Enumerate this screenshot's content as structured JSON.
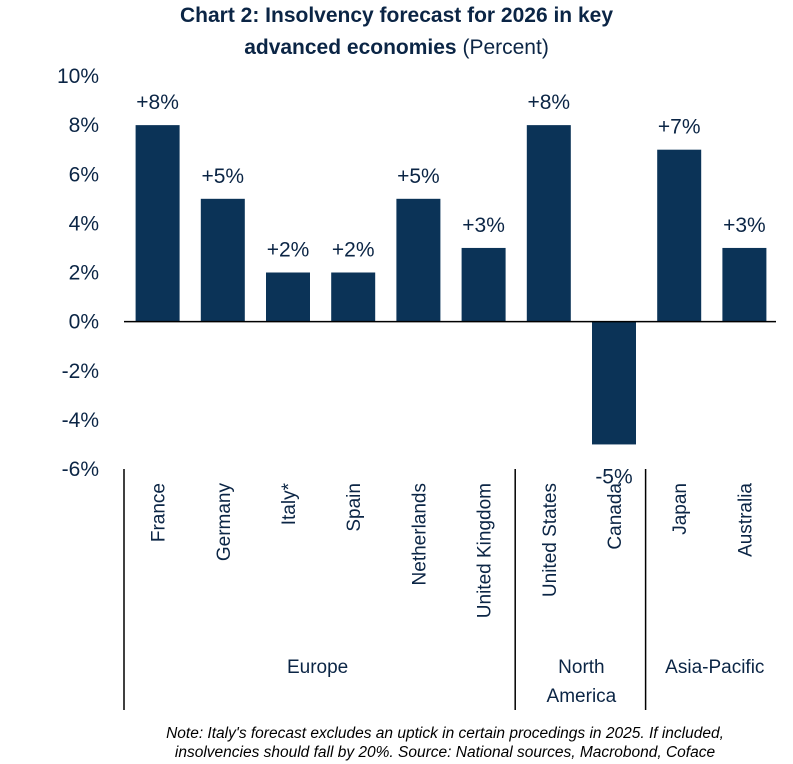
{
  "title": {
    "line1": "Chart 2: Insolvency forecast  for 2026 in key",
    "line2": "advanced economies",
    "line2_suffix": "(Percent)"
  },
  "chart_data": {
    "type": "bar",
    "categories": [
      "France",
      "Germany",
      "Italy*",
      "Spain",
      "Netherlands",
      "United Kingdom",
      "United States",
      "Canada",
      "Japan",
      "Australia"
    ],
    "values": [
      8,
      5,
      2,
      2,
      5,
      3,
      8,
      -5,
      7,
      3
    ],
    "data_labels": [
      "+8%",
      "+5%",
      "+2%",
      "+2%",
      "+5%",
      "+3%",
      "+8%",
      "-5%",
      "+7%",
      "+3%"
    ],
    "yticks": [
      10,
      8,
      6,
      4,
      2,
      0,
      -2,
      -4,
      -6
    ],
    "ytick_labels": [
      "10%",
      "8%",
      "6%",
      "4%",
      "2%",
      "0%",
      "-2%",
      "-4%",
      "-6%"
    ],
    "ylim": [
      -6,
      10
    ],
    "groups": [
      {
        "name": "Europe",
        "start": 0,
        "end": 5
      },
      {
        "name_line1": "North",
        "name_line2": "America",
        "start": 6,
        "end": 7
      },
      {
        "name": "Asia-Pacific",
        "start": 8,
        "end": 9
      }
    ],
    "bar_color": "#0b3357",
    "grid": false,
    "legend": "none"
  },
  "note": {
    "line1": "Note: Italy's forecast excludes an uptick in certain procedings in 2025. If included,",
    "line2": "insolvencies should fall by 20%. Source: National sources, Macrobond, Coface"
  }
}
